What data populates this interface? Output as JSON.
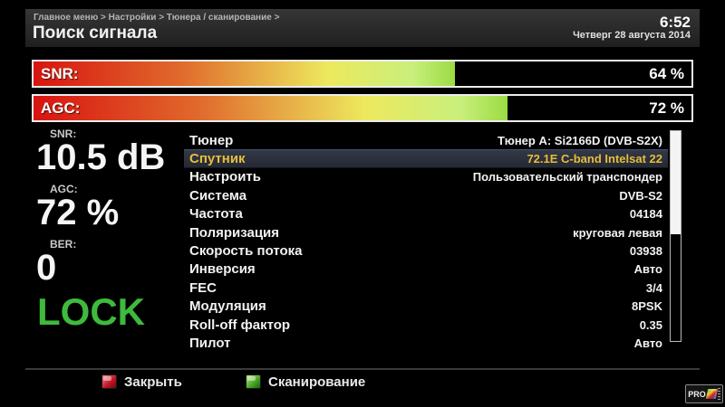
{
  "header": {
    "breadcrumb": "Главное меню > Настройки > Тюнера / сканирование >",
    "title": "Поиск сигнала",
    "clock": "6:52",
    "date": "Четверг 28 августа 2014"
  },
  "signal_bars": [
    {
      "label": "SNR:",
      "value_text": "64 %",
      "percent": 64
    },
    {
      "label": "AGC:",
      "value_text": "72 %",
      "percent": 72
    }
  ],
  "readings": [
    {
      "label": "SNR:",
      "value": "10.5 dB"
    },
    {
      "label": "AGC:",
      "value": "72 %"
    },
    {
      "label": "BER:",
      "value": "0"
    }
  ],
  "lock_status": "LOCK",
  "menu": {
    "items": [
      {
        "label": "Тюнер",
        "value": "Тюнер A: Si2166D (DVB-S2X)",
        "selected": false
      },
      {
        "label": "Спутник",
        "value": "72.1E C-band Intelsat 22",
        "selected": true
      },
      {
        "label": "Настроить",
        "value": "Пользовательский транспондер",
        "selected": false
      },
      {
        "label": "Система",
        "value": "DVB-S2",
        "selected": false
      },
      {
        "label": "Частота",
        "value": "04184",
        "selected": false
      },
      {
        "label": "Поляризация",
        "value": "круговая левая",
        "selected": false
      },
      {
        "label": "Скорость потока",
        "value": "03938",
        "selected": false
      },
      {
        "label": "Инверсия",
        "value": "Авто",
        "selected": false
      },
      {
        "label": "FEC",
        "value": "3/4",
        "selected": false
      },
      {
        "label": "Модуляция",
        "value": "8PSK",
        "selected": false
      },
      {
        "label": "Roll-off фактор",
        "value": "0.35",
        "selected": false
      },
      {
        "label": "Пилот",
        "value": "Авто",
        "selected": false
      }
    ]
  },
  "scrollbar": {
    "thumb_percent": 49
  },
  "footer": {
    "buttons": [
      {
        "key_color": "#c41928",
        "label": "Закрыть"
      },
      {
        "key_color": "#4aa828",
        "label": "Сканирование"
      }
    ]
  },
  "logo": {
    "text": "PRO"
  },
  "colors": {
    "highlight_text": "#e8bd3a",
    "lock_green": "#3eba3d",
    "bar_gradient_start": "#d81410",
    "bar_gradient_end": "#9bdc43",
    "header_bg": "#2b2b2b"
  }
}
